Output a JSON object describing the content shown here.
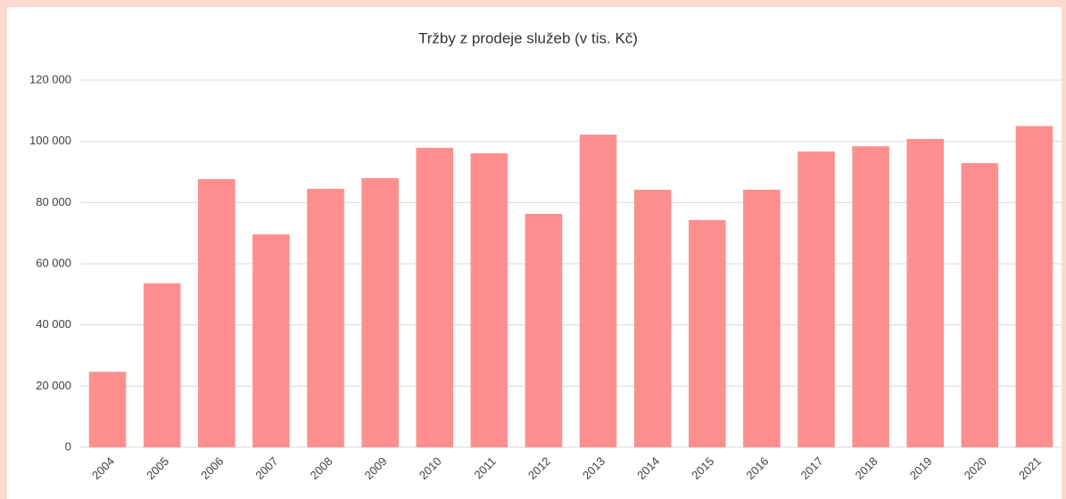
{
  "chart_data": {
    "type": "bar",
    "title": "Tržby z prodeje služeb (v tis. Kč)",
    "categories": [
      "2004",
      "2005",
      "2006",
      "2007",
      "2008",
      "2009",
      "2010",
      "2011",
      "2012",
      "2013",
      "2014",
      "2015",
      "2016",
      "2017",
      "2018",
      "2019",
      "2020",
      "2021"
    ],
    "values": [
      24700,
      53600,
      87700,
      69600,
      84500,
      88000,
      97900,
      96100,
      76300,
      102200,
      84200,
      74300,
      84200,
      96700,
      98400,
      100800,
      92900,
      105000
    ],
    "color": "#ff8f8f",
    "ylim": [
      0,
      120000
    ],
    "yticks": [
      0,
      {
        "value": 20000,
        "label": "20 000"
      },
      {
        "value": 40000,
        "label": "40 000"
      },
      {
        "value": 60000,
        "label": "60 000"
      },
      {
        "value": 80000,
        "label": "80 000"
      },
      {
        "value": 100000,
        "label": "100 000"
      },
      {
        "value": 120000,
        "label": "120 000"
      }
    ],
    "grid": true
  }
}
